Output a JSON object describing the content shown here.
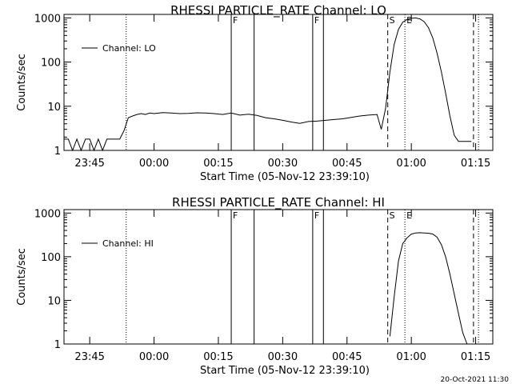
{
  "chart_data": [
    {
      "type": "line",
      "title": "RHESSI PARTICLE_RATE Channel: LO",
      "xlabel": "Start Time (05-Nov-12 23:39:10)",
      "ylabel": "Counts/sec",
      "y_scale": "log",
      "ylim": [
        1,
        1200
      ],
      "xlim": [
        "23:39",
        "01:19"
      ],
      "x_ticks": [
        "23:45",
        "00:00",
        "00:15",
        "00:30",
        "00:45",
        "01:00",
        "01:15"
      ],
      "y_ticks": [
        "1",
        "10",
        "100",
        "1000"
      ],
      "legend": "top-left",
      "series": [
        {
          "name": "Channel: LO",
          "x": [
            "23:39",
            "23:40",
            "23:41",
            "23:42",
            "23:43",
            "23:44",
            "23:45",
            "23:46",
            "23:47",
            "23:48",
            "23:49",
            "23:50",
            "23:51",
            "23:52",
            "23:53",
            "23:54",
            "23:55",
            "23:56",
            "23:57",
            "23:58",
            "23:59",
            "00:00",
            "00:02",
            "00:04",
            "00:06",
            "00:08",
            "00:10",
            "00:12",
            "00:14",
            "00:16",
            "00:18",
            "00:20",
            "00:22",
            "00:24",
            "00:26",
            "00:28",
            "00:30",
            "00:32",
            "00:34",
            "00:36",
            "00:38",
            "00:40",
            "00:42",
            "00:44",
            "00:46",
            "00:48",
            "00:50",
            "00:52",
            "00:53",
            "00:54",
            "00:55",
            "00:56",
            "00:57",
            "00:58",
            "00:59",
            "01:00",
            "01:01",
            "01:02",
            "01:03",
            "01:04",
            "01:05",
            "01:06",
            "01:07",
            "01:08",
            "01:09",
            "01:10",
            "01:11",
            "01:12",
            "01:13",
            "01:14"
          ],
          "values": [
            1.8,
            1.8,
            1,
            1.8,
            1,
            1.8,
            1.8,
            1,
            1.8,
            1,
            1.8,
            1.8,
            1.8,
            1.8,
            2.8,
            5.5,
            6,
            6.5,
            6.8,
            6.5,
            7,
            6.8,
            7.2,
            7,
            6.8,
            6.9,
            7.1,
            7,
            6.8,
            6.5,
            7,
            6.3,
            6.6,
            6.2,
            5.5,
            5.2,
            4.8,
            4.4,
            4.1,
            4.5,
            4.6,
            4.8,
            5,
            5.2,
            5.6,
            6,
            6.3,
            6.5,
            3,
            9,
            60,
            250,
            550,
            800,
            920,
            980,
            1000,
            950,
            820,
            600,
            350,
            160,
            60,
            20,
            6,
            2.2,
            1.6,
            1.6,
            1.6,
            1.6
          ]
        }
      ],
      "markers": [
        {
          "time": "23:53:30",
          "style": "dotted",
          "label": ""
        },
        {
          "time": "00:18:00",
          "style": "solid",
          "label": "F"
        },
        {
          "time": "00:23:20",
          "style": "solid",
          "label": ""
        },
        {
          "time": "00:37:00",
          "style": "solid",
          "label": "F"
        },
        {
          "time": "00:39:30",
          "style": "solid",
          "label": ""
        },
        {
          "time": "00:54:30",
          "style": "dashed",
          "label": "S"
        },
        {
          "time": "00:58:30",
          "style": "dotted",
          "label": "E"
        },
        {
          "time": "01:14:30",
          "style": "dashed",
          "label": ""
        },
        {
          "time": "01:15:40",
          "style": "dotted",
          "label": ""
        }
      ]
    },
    {
      "type": "line",
      "title": "RHESSI PARTICLE_RATE Channel: HI",
      "xlabel": "Start Time (05-Nov-12 23:39:10)",
      "ylabel": "Counts/sec",
      "y_scale": "log",
      "ylim": [
        1,
        1200
      ],
      "xlim": [
        "23:39",
        "01:19"
      ],
      "x_ticks": [
        "23:45",
        "00:00",
        "00:15",
        "00:30",
        "00:45",
        "01:00",
        "01:15"
      ],
      "y_ticks": [
        "1",
        "10",
        "100",
        "1000"
      ],
      "legend": "top-left",
      "series": [
        {
          "name": "Channel: HI",
          "x": [
            "00:55",
            "00:56",
            "00:57",
            "00:58",
            "00:59",
            "01:00",
            "01:01",
            "01:02",
            "01:03",
            "01:04",
            "01:05",
            "01:06",
            "01:07",
            "01:08",
            "01:09",
            "01:10",
            "01:11",
            "01:12",
            "01:13"
          ],
          "values": [
            1.5,
            12,
            80,
            200,
            270,
            330,
            350,
            355,
            350,
            345,
            330,
            280,
            190,
            100,
            40,
            14,
            5,
            1.8,
            1
          ]
        }
      ],
      "markers": [
        {
          "time": "23:53:30",
          "style": "dotted",
          "label": ""
        },
        {
          "time": "00:18:00",
          "style": "solid",
          "label": "F"
        },
        {
          "time": "00:23:20",
          "style": "solid",
          "label": ""
        },
        {
          "time": "00:37:00",
          "style": "solid",
          "label": "F"
        },
        {
          "time": "00:39:30",
          "style": "solid",
          "label": ""
        },
        {
          "time": "00:54:30",
          "style": "dashed",
          "label": "S"
        },
        {
          "time": "00:58:30",
          "style": "dotted",
          "label": "E"
        },
        {
          "time": "01:14:30",
          "style": "dashed",
          "label": ""
        },
        {
          "time": "01:15:40",
          "style": "dotted",
          "label": ""
        }
      ]
    }
  ],
  "footer": {
    "timestamp": "20-Oct-2021 11:30"
  }
}
